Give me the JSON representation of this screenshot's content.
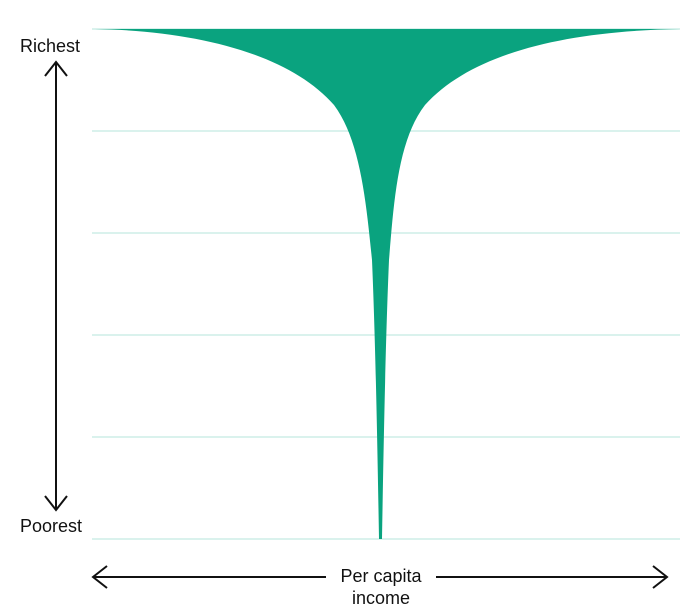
{
  "chart_data": {
    "type": "area",
    "title": "",
    "y_axis": {
      "top_label": "Richest",
      "bottom_label": "Poorest"
    },
    "x_axis": {
      "label_line1": "Per capita",
      "label_line2": "income"
    },
    "grid": true,
    "gridline_count": 5,
    "colors": {
      "fill": "#0aa37f",
      "gridline": "#cdeee7",
      "axis": "#111111"
    }
  }
}
